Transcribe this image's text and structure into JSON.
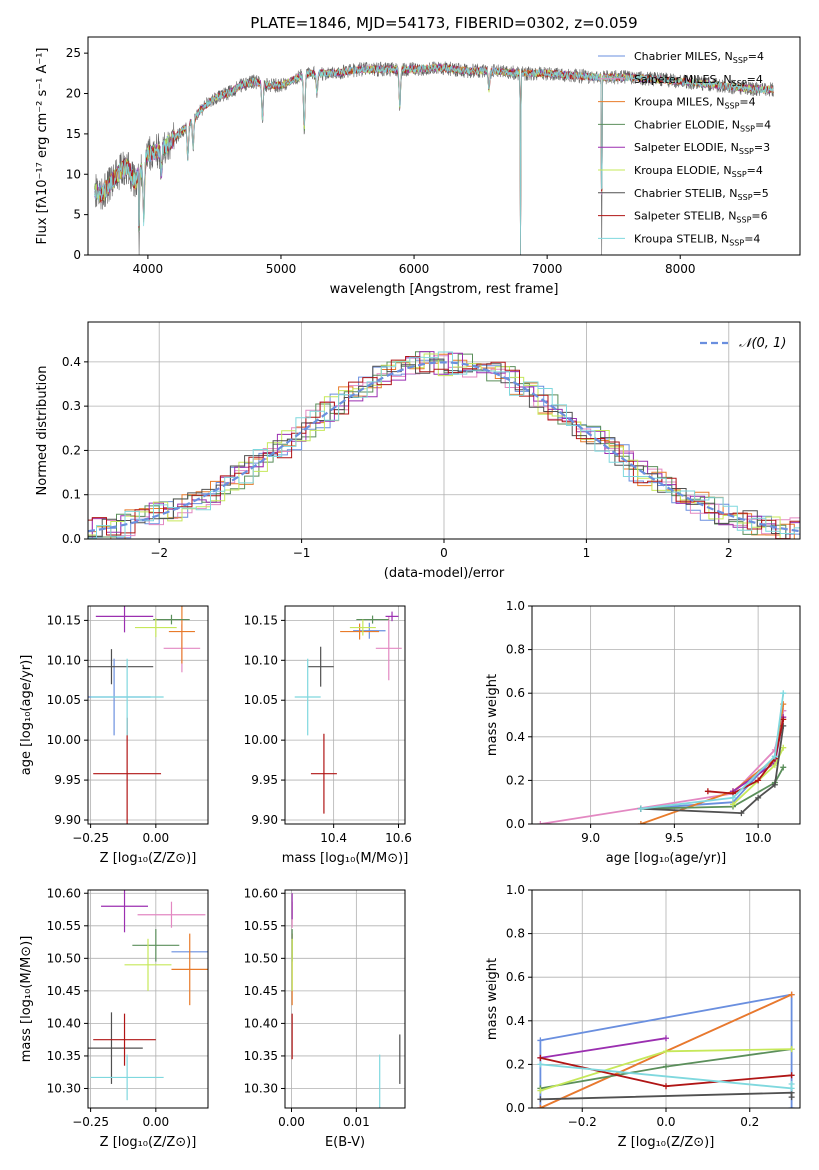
{
  "title": "PLATE=1846, MJD=54173, FIBERID=0302, z=0.059",
  "series": [
    {
      "name": "Chabrier MILES",
      "nssp": "4",
      "color": "#6a8fdf"
    },
    {
      "name": "Salpeter MILES",
      "nssp": "4",
      "color": "#e388c2"
    },
    {
      "name": "Kroupa MILES",
      "nssp": "4",
      "color": "#e87b2a"
    },
    {
      "name": "Chabrier ELODIE",
      "nssp": "4",
      "color": "#5b8f5b"
    },
    {
      "name": "Salpeter ELODIE",
      "nssp": "3",
      "color": "#9b2fb0"
    },
    {
      "name": "Kroupa ELODIE",
      "nssp": "4",
      "color": "#c6e85a"
    },
    {
      "name": "Chabrier STELIB",
      "nssp": "5",
      "color": "#505050"
    },
    {
      "name": "Salpeter STELIB",
      "nssp": "6",
      "color": "#b01515"
    },
    {
      "name": "Kroupa STELIB",
      "nssp": "4",
      "color": "#7fd8de"
    }
  ],
  "chart_data": [
    {
      "id": "spectrum",
      "type": "line",
      "xlabel": "wavelength [Angstrom, rest frame]",
      "ylabel": "Flux [fλ10⁻¹⁷ erg cm⁻² s⁻¹ A⁻¹]",
      "xlim": [
        3550,
        8900
      ],
      "ylim": [
        0,
        27
      ],
      "xticks": [
        "4000",
        "5000",
        "6000",
        "7000",
        "8000"
      ],
      "xtick_values": [
        4000,
        5000,
        6000,
        7000,
        8000
      ],
      "yticks": [
        "0",
        "5",
        "10",
        "15",
        "20",
        "25"
      ],
      "ytick_values": [
        0,
        5,
        10,
        15,
        20,
        25
      ],
      "legend": "right",
      "continuum": {
        "x": [
          3600,
          3650,
          3700,
          3750,
          3800,
          3850,
          3900,
          3950,
          4000,
          4100,
          4200,
          4300,
          4400,
          4500,
          4600,
          4700,
          4800,
          4900,
          5000,
          5200,
          5400,
          5600,
          5800,
          6000,
          6200,
          6400,
          6600,
          6800,
          7000,
          7200,
          7400,
          7600,
          7800,
          8000,
          8200,
          8400,
          8600,
          8700
        ],
        "y": [
          8,
          7.5,
          8.5,
          9.5,
          10.5,
          11,
          9,
          10.5,
          12.5,
          13,
          14.5,
          16,
          18,
          19.5,
          20,
          21,
          21.5,
          21,
          21,
          22.5,
          22.5,
          23,
          23,
          23,
          23.2,
          22.8,
          22.8,
          22.5,
          22.5,
          22.2,
          22,
          22,
          21.8,
          21.5,
          21.2,
          20.8,
          20.5,
          20.5
        ]
      },
      "absorption_lines": [
        {
          "x": 3934,
          "depth": 0.95
        },
        {
          "x": 3969,
          "depth": 0.6
        },
        {
          "x": 4102,
          "depth": 0.2
        },
        {
          "x": 4300,
          "depth": 0.25
        },
        {
          "x": 4340,
          "depth": 0.2
        },
        {
          "x": 4861,
          "depth": 0.2
        },
        {
          "x": 5175,
          "depth": 0.3
        },
        {
          "x": 5270,
          "depth": 0.1
        },
        {
          "x": 5893,
          "depth": 0.2
        },
        {
          "x": 6563,
          "depth": 0.1
        },
        {
          "x": 6800,
          "depth": 1.0
        },
        {
          "x": 7410,
          "depth": 1.0
        }
      ]
    },
    {
      "id": "residuals",
      "type": "bar",
      "xlabel": "(data-model)/error",
      "ylabel": "Normed distribution",
      "xlim": [
        -2.5,
        2.5
      ],
      "ylim": [
        0,
        0.49
      ],
      "xticks": [
        "−2",
        "−1",
        "0",
        "1",
        "2"
      ],
      "xtick_values": [
        -2,
        -1,
        0,
        1,
        2
      ],
      "yticks": [
        "0.0",
        "0.1",
        "0.2",
        "0.3",
        "0.4"
      ],
      "ytick_values": [
        0,
        0.1,
        0.2,
        0.3,
        0.4
      ],
      "grid": true,
      "legend": "top-right",
      "reference_label": "𝒩(0, 1)",
      "reference_color": "#6a8fdf",
      "bin_width": 0.1
    },
    {
      "id": "age_vs_Z",
      "type": "scatter",
      "xlabel": "Z [log₁₀(Z/Z⊙)]",
      "ylabel": "age  [log₁₀(age/yr)]",
      "xlim": [
        -0.26,
        0.2
      ],
      "ylim": [
        9.895,
        10.168
      ],
      "xticks": [
        "−0.25",
        "0.00"
      ],
      "xtick_values": [
        -0.25,
        0
      ],
      "yticks": [
        "9.90",
        "9.95",
        "10.00",
        "10.05",
        "10.10",
        "10.15"
      ],
      "ytick_values": [
        9.9,
        9.95,
        10,
        10.05,
        10.1,
        10.15
      ],
      "grid": true,
      "points": [
        {
          "x": -0.16,
          "y": 10.054,
          "xerr": 0.14,
          "yerr": 0.048
        },
        {
          "x": 0.1,
          "y": 10.115,
          "xerr": 0.07,
          "yerr": 0.03
        },
        {
          "x": 0.1,
          "y": 10.136,
          "xerr": 0.05,
          "yerr": 0.04
        },
        {
          "x": 0.06,
          "y": 10.151,
          "xerr": 0.07,
          "yerr": 0.006
        },
        {
          "x": -0.12,
          "y": 10.155,
          "xerr": 0.11,
          "yerr": 0.02
        },
        {
          "x": 0.0,
          "y": 10.141,
          "xerr": 0.08,
          "yerr": 0.012
        },
        {
          "x": -0.17,
          "y": 10.092,
          "xerr": 0.16,
          "yerr": 0.022
        },
        {
          "x": -0.11,
          "y": 9.958,
          "xerr": 0.13,
          "yerr": 0.07
        },
        {
          "x": -0.11,
          "y": 10.054,
          "xerr": 0.14,
          "yerr": 0.048
        }
      ]
    },
    {
      "id": "age_vs_mass",
      "type": "scatter",
      "xlabel": "mass [log₁₀(M/M⊙)]",
      "ylabel": "",
      "xlim": [
        10.25,
        10.62
      ],
      "ylim": [
        9.895,
        10.168
      ],
      "xticks": [
        "10.4",
        "10.6"
      ],
      "xtick_values": [
        10.4,
        10.6
      ],
      "yticks": [
        "9.90",
        "9.95",
        "10.00",
        "10.05",
        "10.10",
        "10.15"
      ],
      "ytick_values": [
        9.9,
        9.95,
        10,
        10.05,
        10.1,
        10.15
      ],
      "grid": true,
      "points": [
        {
          "x": 10.51,
          "y": 10.137,
          "xerr": 0.05,
          "yerr": 0.01
        },
        {
          "x": 10.57,
          "y": 10.115,
          "xerr": 0.04,
          "yerr": 0.04
        },
        {
          "x": 10.48,
          "y": 10.136,
          "xerr": 0.06,
          "yerr": 0.01
        },
        {
          "x": 10.52,
          "y": 10.151,
          "xerr": 0.05,
          "yerr": 0.005
        },
        {
          "x": 10.58,
          "y": 10.155,
          "xerr": 0.02,
          "yerr": 0.006
        },
        {
          "x": 10.49,
          "y": 10.141,
          "xerr": 0.04,
          "yerr": 0.01
        },
        {
          "x": 10.36,
          "y": 10.092,
          "xerr": 0.04,
          "yerr": 0.025
        },
        {
          "x": 10.37,
          "y": 9.958,
          "xerr": 0.04,
          "yerr": 0.05
        },
        {
          "x": 10.32,
          "y": 10.054,
          "xerr": 0.04,
          "yerr": 0.048
        }
      ]
    },
    {
      "id": "weight_vs_age",
      "type": "line",
      "xlabel": "age  [log₁₀(age/yr)]",
      "ylabel": "mass weight",
      "xlim": [
        8.65,
        10.25
      ],
      "ylim": [
        0,
        1
      ],
      "xticks": [
        "9.0",
        "9.5",
        "10.0"
      ],
      "xtick_values": [
        9,
        9.5,
        10
      ],
      "yticks": [
        "0.0",
        "0.2",
        "0.4",
        "0.6",
        "0.8",
        "1.0"
      ],
      "ytick_values": [
        0,
        0.2,
        0.4,
        0.6,
        0.8,
        1
      ],
      "grid": true,
      "series": [
        {
          "x": [
            9.3,
            9.85,
            10.1,
            10.15
          ],
          "y": [
            0.07,
            0.1,
            0.31,
            0.52
          ]
        },
        {
          "x": [
            8.7,
            9.85,
            10.1,
            10.15
          ],
          "y": [
            0.0,
            0.14,
            0.34,
            0.52
          ]
        },
        {
          "x": [
            9.3,
            9.85,
            10.1,
            10.15
          ],
          "y": [
            0.0,
            0.15,
            0.3,
            0.55
          ]
        },
        {
          "x": [
            9.3,
            9.85,
            10.1,
            10.15
          ],
          "y": [
            0.07,
            0.08,
            0.19,
            0.26
          ]
        },
        {
          "x": [
            9.85,
            10.1,
            10.15
          ],
          "y": [
            0.15,
            0.28,
            0.49
          ]
        },
        {
          "x": [
            9.85,
            10.1,
            10.15
          ],
          "y": [
            0.09,
            0.27,
            0.35
          ]
        },
        {
          "x": [
            9.3,
            9.9,
            10.0,
            10.1,
            10.15
          ],
          "y": [
            0.07,
            0.05,
            0.12,
            0.18,
            0.45
          ]
        },
        {
          "x": [
            9.7,
            9.85,
            10.0,
            10.1,
            10.15
          ],
          "y": [
            0.15,
            0.14,
            0.2,
            0.3,
            0.48
          ]
        },
        {
          "x": [
            9.3,
            9.85,
            10.1,
            10.15
          ],
          "y": [
            0.07,
            0.12,
            0.31,
            0.6
          ]
        }
      ]
    },
    {
      "id": "mass_vs_Z",
      "type": "scatter",
      "xlabel": "Z [log₁₀(Z/Z⊙)]",
      "ylabel": "mass [log₁₀(M/M⊙)]",
      "xlim": [
        -0.26,
        0.2
      ],
      "ylim": [
        10.27,
        10.605
      ],
      "xticks": [
        "−0.25",
        "0.00"
      ],
      "xtick_values": [
        -0.25,
        0
      ],
      "yticks": [
        "10.30",
        "10.35",
        "10.40",
        "10.45",
        "10.50",
        "10.55",
        "10.60"
      ],
      "ytick_values": [
        10.3,
        10.35,
        10.4,
        10.45,
        10.5,
        10.55,
        10.6
      ],
      "grid": true,
      "points": [
        {
          "x": 0.13,
          "y": 10.51,
          "xerr": 0.07,
          "yerr": 0.0
        },
        {
          "x": 0.06,
          "y": 10.567,
          "xerr": 0.13,
          "yerr": 0.02
        },
        {
          "x": 0.13,
          "y": 10.483,
          "xerr": 0.07,
          "yerr": 0.055
        },
        {
          "x": 0.0,
          "y": 10.52,
          "xerr": 0.09,
          "yerr": 0.025
        },
        {
          "x": -0.12,
          "y": 10.58,
          "xerr": 0.09,
          "yerr": 0.04
        },
        {
          "x": -0.03,
          "y": 10.49,
          "xerr": 0.09,
          "yerr": 0.04
        },
        {
          "x": -0.17,
          "y": 10.362,
          "xerr": 0.12,
          "yerr": 0.055
        },
        {
          "x": -0.12,
          "y": 10.375,
          "xerr": 0.12,
          "yerr": 0.04
        },
        {
          "x": -0.11,
          "y": 10.317,
          "xerr": 0.14,
          "yerr": 0.035
        }
      ]
    },
    {
      "id": "mass_vs_ebv",
      "type": "scatter",
      "xlabel": "E(B-V)",
      "ylabel": "",
      "xlim": [
        -0.001,
        0.0175
      ],
      "ylim": [
        10.27,
        10.605
      ],
      "xticks": [
        "0.00",
        "0.01"
      ],
      "xtick_values": [
        0,
        0.01
      ],
      "yticks": [
        "10.30",
        "10.35",
        "10.40",
        "10.45",
        "10.50",
        "10.55",
        "10.60"
      ],
      "ytick_values": [
        10.3,
        10.35,
        10.4,
        10.45,
        10.5,
        10.55,
        10.6
      ],
      "grid": true,
      "points": [
        {
          "x": 0.0001,
          "y": 10.51,
          "xerr": 0,
          "yerr": 0.0
        },
        {
          "x": 0.0001,
          "y": 10.567,
          "xerr": 0,
          "yerr": 0.02
        },
        {
          "x": 0.0001,
          "y": 10.483,
          "xerr": 0,
          "yerr": 0.055
        },
        {
          "x": 0.0001,
          "y": 10.52,
          "xerr": 0,
          "yerr": 0.025
        },
        {
          "x": 0.0001,
          "y": 10.58,
          "xerr": 0,
          "yerr": 0.02
        },
        {
          "x": 0.0001,
          "y": 10.49,
          "xerr": 0,
          "yerr": 0.04
        },
        {
          "x": 0.0167,
          "y": 10.345,
          "xerr": 0,
          "yerr": 0.038
        },
        {
          "x": 0.0001,
          "y": 10.38,
          "xerr": 0,
          "yerr": 0.035
        },
        {
          "x": 0.0136,
          "y": 10.31,
          "xerr": 0,
          "yerr": 0.042
        }
      ]
    },
    {
      "id": "weight_vs_Z",
      "type": "line",
      "xlabel": "Z [log₁₀(Z/Z⊙)]",
      "ylabel": "mass weight",
      "xlim": [
        -0.32,
        0.32
      ],
      "ylim": [
        0,
        1
      ],
      "xticks": [
        "−0.2",
        "0.0",
        "0.2"
      ],
      "xtick_values": [
        -0.2,
        0,
        0.2
      ],
      "yticks": [
        "0.0",
        "0.2",
        "0.4",
        "0.6",
        "0.8",
        "1.0"
      ],
      "ytick_values": [
        0,
        0.2,
        0.4,
        0.6,
        0.8,
        1
      ],
      "grid": true,
      "series": [
        {
          "x": [
            -0.3,
            -0.3,
            0.3,
            0.3
          ],
          "y": [
            0.0,
            0.31,
            0.52,
            0.0
          ]
        },
        {
          "x": [
            -0.3,
            0.3
          ],
          "y": [
            0.0,
            0.52
          ]
        },
        {
          "x": [
            -0.3,
            0.3
          ],
          "y": [
            0.0,
            0.52
          ]
        },
        {
          "x": [
            -0.3,
            0.0,
            0.3
          ],
          "y": [
            0.09,
            0.19,
            0.27
          ]
        },
        {
          "x": [
            -0.3,
            0.0
          ],
          "y": [
            0.23,
            0.32
          ]
        },
        {
          "x": [
            -0.3,
            0.0,
            0.3
          ],
          "y": [
            0.08,
            0.26,
            0.27
          ]
        },
        {
          "x": [
            -0.3,
            0.3,
            0.3
          ],
          "y": [
            0.04,
            0.07,
            0.05
          ]
        },
        {
          "x": [
            -0.3,
            0.0,
            0.3
          ],
          "y": [
            0.23,
            0.1,
            0.15
          ]
        },
        {
          "x": [
            -0.3,
            0.3,
            0.3
          ],
          "y": [
            0.2,
            0.09,
            0.11
          ]
        }
      ]
    }
  ]
}
